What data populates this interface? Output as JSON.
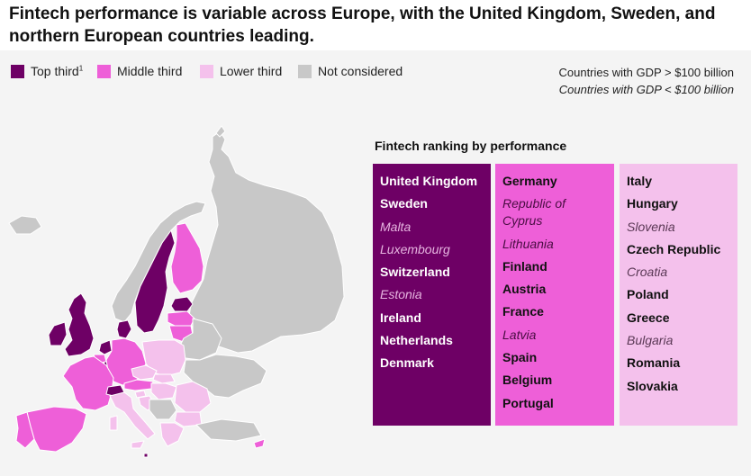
{
  "title": "Fintech performance is variable across Europe, with the United Kingdom, Sweden, and northern European countries leading.",
  "legend": {
    "items": [
      {
        "label": "Top third",
        "footnote": "1",
        "color": "#6e0065"
      },
      {
        "label": "Middle third",
        "footnote": "",
        "color": "#ee5fd8"
      },
      {
        "label": "Lower third",
        "footnote": "",
        "color": "#f4c1ec"
      },
      {
        "label": "Not considered",
        "footnote": "",
        "color": "#c8c8c8"
      }
    ]
  },
  "gdp_note": {
    "large": "Countries with GDP > $100 billion",
    "small": "Countries with GDP < $100 billion"
  },
  "ranking": {
    "title": "Fintech ranking by performance",
    "columns": [
      {
        "tier": "Top third",
        "countries": [
          {
            "name": "United Kingdom",
            "gdp": "large"
          },
          {
            "name": "Sweden",
            "gdp": "large"
          },
          {
            "name": "Malta",
            "gdp": "small"
          },
          {
            "name": "Luxembourg",
            "gdp": "small"
          },
          {
            "name": "Switzerland",
            "gdp": "large"
          },
          {
            "name": "Estonia",
            "gdp": "small"
          },
          {
            "name": "Ireland",
            "gdp": "large"
          },
          {
            "name": "Netherlands",
            "gdp": "large"
          },
          {
            "name": "Denmark",
            "gdp": "large"
          }
        ]
      },
      {
        "tier": "Middle third",
        "countries": [
          {
            "name": "Germany",
            "gdp": "large"
          },
          {
            "name": "Republic of\nCyprus",
            "gdp": "small"
          },
          {
            "name": "Lithuania",
            "gdp": "small"
          },
          {
            "name": "Finland",
            "gdp": "large"
          },
          {
            "name": "Austria",
            "gdp": "large"
          },
          {
            "name": "France",
            "gdp": "large"
          },
          {
            "name": "Latvia",
            "gdp": "small"
          },
          {
            "name": "Spain",
            "gdp": "large"
          },
          {
            "name": "Belgium",
            "gdp": "large"
          },
          {
            "name": "Portugal",
            "gdp": "large"
          }
        ]
      },
      {
        "tier": "Lower third",
        "countries": [
          {
            "name": "Italy",
            "gdp": "large"
          },
          {
            "name": "Hungary",
            "gdp": "large"
          },
          {
            "name": "Slovenia",
            "gdp": "small"
          },
          {
            "name": "Czech Republic",
            "gdp": "large"
          },
          {
            "name": "Croatia",
            "gdp": "small"
          },
          {
            "name": "Poland",
            "gdp": "large"
          },
          {
            "name": "Greece",
            "gdp": "large"
          },
          {
            "name": "Bulgaria",
            "gdp": "small"
          },
          {
            "name": "Romania",
            "gdp": "large"
          },
          {
            "name": "Slovakia",
            "gdp": "large"
          }
        ]
      }
    ]
  },
  "map": {
    "colors": {
      "top": "#6e0065",
      "middle": "#ee5fd8",
      "lower": "#f4c1ec",
      "none": "#c8c8c8",
      "border": "#ffffff"
    }
  }
}
